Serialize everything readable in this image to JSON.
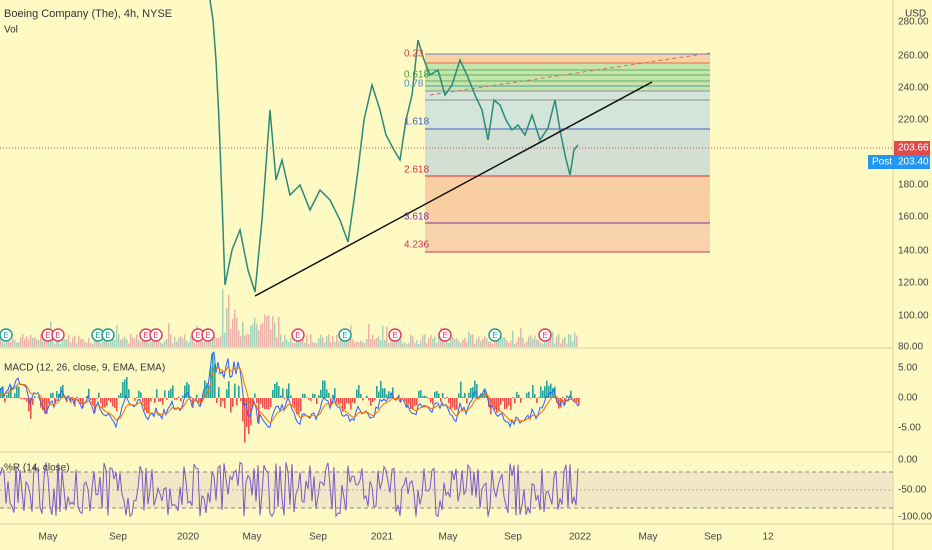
{
  "header": {
    "title": "Boeing Company (The), 4h, NYSE",
    "volume": "Vol",
    "currency": "USD"
  },
  "price_axis": [
    "280.00",
    "260.00",
    "240.00",
    "220.00",
    "180.00",
    "160.00",
    "140.00",
    "120.00",
    "100.00",
    "80.00"
  ],
  "price_tags": {
    "last": "203.66",
    "post_label": "Post",
    "post": "203.40"
  },
  "fib_levels": [
    "0.23",
    "0.618",
    "0.78",
    "1.618",
    "2.618",
    "3.618",
    "4.236"
  ],
  "earnings": [
    "E",
    "E",
    "E",
    "E",
    "E",
    "E",
    "E",
    "E",
    "E",
    "E",
    "E",
    "E",
    "E",
    "E",
    "E"
  ],
  "macd": {
    "label": "MACD (12, 26, close, 9, EMA, EMA)",
    "axis": [
      "5.00",
      "0.00",
      "-5.00"
    ]
  },
  "williams": {
    "label": "%R (14, close)",
    "axis": [
      "0.00",
      "-50.00",
      "-100.00"
    ]
  },
  "time_axis": [
    "May",
    "Sep",
    "2020",
    "May",
    "Sep",
    "2021",
    "May",
    "Sep",
    "2022",
    "May",
    "Sep",
    "12"
  ]
}
